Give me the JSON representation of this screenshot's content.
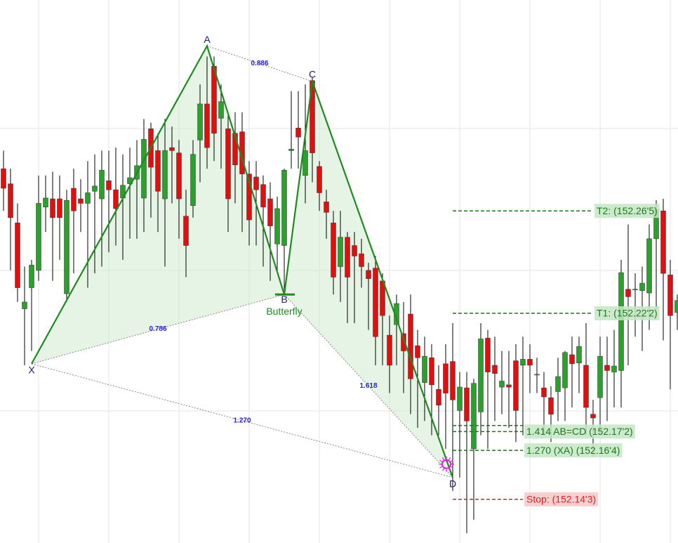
{
  "chart_data": {
    "type": "candlestick",
    "ylim": [
      152.387,
      153.108
    ],
    "up_color": "#2ca02c",
    "down_color": "#e01010",
    "open": [
      152.884,
      152.864,
      152.812,
      152.698,
      152.726,
      152.749,
      152.833,
      152.844,
      152.844,
      152.718,
      152.858,
      152.844,
      152.838,
      152.854,
      152.844,
      152.868,
      152.856,
      152.845,
      152.864,
      152.87,
      152.845,
      152.937,
      152.908,
      152.844,
      152.912,
      152.905,
      152.821,
      152.835,
      152.922,
      152.97,
      153.02,
      152.951,
      152.937,
      152.931,
      152.933,
      152.877,
      152.873,
      152.863,
      152.844,
      152.784,
      152.782,
      152.908,
      152.938,
      152.875,
      153.001,
      152.887,
      152.84,
      152.812,
      152.754,
      152.793,
      152.782,
      152.771,
      152.749,
      152.752,
      152.735,
      152.663,
      152.677,
      152.665,
      152.691,
      152.649,
      152.6,
      152.633,
      152.591,
      152.625,
      152.628,
      152.563,
      152.593,
      152.512,
      152.561,
      152.659,
      152.623,
      152.594,
      152.597,
      152.629,
      152.623,
      152.631,
      152.61,
      152.593,
      152.58,
      152.588,
      152.593,
      152.637,
      152.626,
      152.623,
      152.558,
      152.58,
      152.623,
      152.614,
      152.616,
      152.724,
      152.723,
      152.722,
      152.719,
      152.791,
      152.828,
      152.743,
      152.693
    ],
    "high": [
      152.908,
      152.884,
      152.838,
      152.754,
      152.763,
      152.875,
      152.875,
      152.88,
      152.875,
      152.856,
      152.884,
      152.87,
      152.894,
      152.903,
      152.908,
      152.908,
      152.912,
      152.903,
      152.912,
      152.922,
      152.95,
      152.945,
      152.931,
      152.95,
      152.94,
      152.922,
      152.856,
      152.922,
      152.996,
      153.033,
      153.033,
      152.996,
      152.954,
      152.959,
      152.959,
      152.894,
      152.894,
      152.875,
      152.866,
      152.847,
      152.884,
      152.987,
      152.987,
      152.996,
      153.005,
      152.894,
      152.856,
      152.828,
      152.828,
      152.8,
      152.8,
      152.791,
      152.759,
      152.768,
      152.745,
      152.689,
      152.717,
      152.707,
      152.717,
      152.67,
      152.661,
      152.651,
      152.623,
      152.651,
      152.679,
      152.614,
      152.614,
      152.605,
      152.679,
      152.67,
      152.661,
      152.642,
      152.642,
      152.651,
      152.661,
      152.651,
      152.633,
      152.614,
      152.595,
      152.633,
      152.642,
      152.661,
      152.661,
      152.679,
      152.577,
      152.661,
      152.661,
      152.67,
      152.763,
      152.81,
      152.745,
      152.754,
      152.81,
      152.842,
      152.844,
      152.763,
      152.717
    ],
    "low": [
      152.828,
      152.749,
      152.707,
      152.623,
      152.642,
      152.735,
      152.8,
      152.735,
      152.763,
      152.707,
      152.745,
      152.8,
      152.726,
      152.745,
      152.754,
      152.773,
      152.782,
      152.763,
      152.791,
      152.791,
      152.8,
      152.819,
      152.8,
      152.754,
      152.838,
      152.791,
      152.74,
      152.819,
      152.866,
      152.884,
      152.894,
      152.884,
      152.8,
      152.838,
      152.8,
      152.782,
      152.782,
      152.754,
      152.735,
      152.745,
      152.717,
      152.884,
      152.884,
      152.838,
      152.866,
      152.828,
      152.791,
      152.717,
      152.707,
      152.679,
      152.679,
      152.726,
      152.67,
      152.623,
      152.623,
      152.586,
      152.623,
      152.586,
      152.558,
      152.54,
      152.549,
      152.53,
      152.53,
      152.512,
      152.456,
      152.474,
      152.4,
      152.418,
      152.53,
      152.512,
      152.549,
      152.558,
      152.54,
      152.521,
      152.53,
      152.586,
      152.586,
      152.53,
      152.521,
      152.549,
      152.549,
      152.567,
      152.586,
      152.53,
      152.502,
      152.53,
      152.549,
      152.567,
      152.567,
      152.623,
      152.661,
      152.642,
      152.67,
      152.698,
      152.656,
      152.591,
      152.67
    ],
    "close": [
      152.858,
      152.819,
      152.726,
      152.707,
      152.756,
      152.838,
      152.845,
      152.819,
      152.819,
      152.842,
      152.828,
      152.838,
      152.852,
      152.861,
      152.882,
      152.856,
      152.831,
      152.862,
      152.872,
      152.888,
      152.923,
      152.886,
      152.854,
      152.908,
      152.908,
      152.844,
      152.782,
      152.903,
      152.97,
      152.912,
      152.931,
      152.973,
      152.844,
      152.889,
      152.877,
      152.816,
      152.856,
      152.833,
      152.808,
      152.831,
      152.882,
      152.91,
      152.926,
      152.908,
      152.905,
      152.852,
      152.826,
      152.74,
      152.793,
      152.74,
      152.768,
      152.754,
      152.738,
      152.661,
      152.689,
      152.623,
      152.705,
      152.642,
      152.605,
      152.633,
      152.635,
      152.597,
      152.57,
      152.586,
      152.577,
      152.594,
      152.549,
      152.599,
      152.658,
      152.614,
      152.612,
      152.602,
      152.594,
      152.563,
      152.631,
      152.623,
      152.611,
      152.581,
      152.558,
      152.608,
      152.64,
      152.625,
      152.648,
      152.567,
      152.553,
      152.635,
      152.616,
      152.622,
      152.746,
      152.714,
      152.724,
      152.732,
      152.791,
      152.83,
      152.745,
      152.689,
      152.709
    ],
    "pattern": {
      "name": "Butterfly",
      "line_color": "#1f8a1f",
      "fill_color": "#c8e6c8",
      "points": [
        {
          "label": "X",
          "index": 4,
          "price": 152.625
        },
        {
          "label": "A",
          "index": 29,
          "price": 153.047
        },
        {
          "label": "B",
          "index": 40,
          "price": 152.717
        },
        {
          "label": "C",
          "index": 44,
          "price": 153.0
        },
        {
          "label": "D",
          "index": 64,
          "price": 152.474
        }
      ],
      "ratios": [
        {
          "label": "0.886",
          "from": 1,
          "to": 3
        },
        {
          "label": "0.786",
          "from": 0,
          "to": 2
        },
        {
          "label": "1.618",
          "from": 2,
          "to": 4
        },
        {
          "label": "1.270",
          "from": 0,
          "to": 4
        }
      ]
    },
    "levels": [
      {
        "label": "T2: (152.26'5)",
        "price": 152.828,
        "color": "#1a7a1a",
        "box": "#c6e6c6"
      },
      {
        "label": "T1: (152.22'2)",
        "price": 152.692,
        "color": "#1a7a1a",
        "box": "#c6e6c6"
      },
      {
        "price": 152.543,
        "color": "#1a7a1a"
      },
      {
        "label": "1.414 AB=CD (152.17'2)",
        "price": 152.535,
        "color": "#1a7a1a",
        "box": "#c6e6c6"
      },
      {
        "label": "1.270 (XA) (152.16'4)",
        "price": 152.51,
        "color": "#1a7a1a",
        "box": "#c6e6c6"
      },
      {
        "label": "Stop: (152.14'3)",
        "price": 152.445,
        "color": "#e02020",
        "box": "#f8c8c8"
      }
    ]
  }
}
